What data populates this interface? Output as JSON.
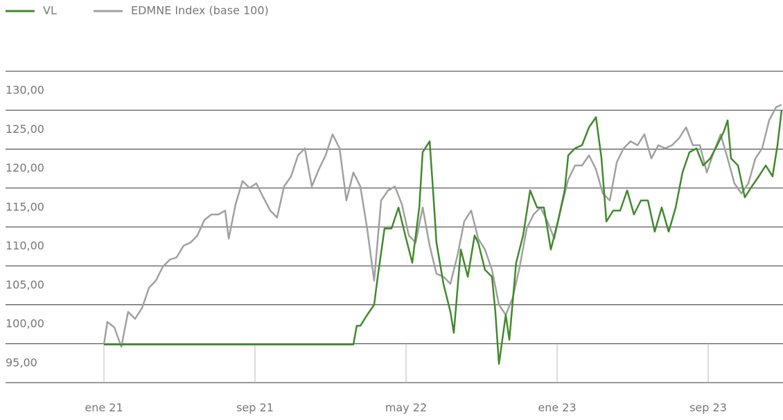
{
  "chart_data": {
    "type": "line",
    "series": [
      {
        "name": "VL",
        "color": "#3f8a2a",
        "x": [
          0,
          13.21,
          13.39,
          13.58,
          13.94,
          14.31,
          14.5,
          14.86,
          15.23,
          15.6,
          15.96,
          16.33,
          16.7,
          16.88,
          17.25,
          17.43,
          17.61,
          17.98,
          18.35,
          18.53,
          18.9,
          19.27,
          19.63,
          19.82,
          20.18,
          20.55,
          20.73,
          20.92,
          21.28,
          21.47,
          21.83,
          22.2,
          22.57,
          22.94,
          23.3,
          23.67,
          24.04,
          24.4,
          24.59,
          24.95,
          25.32,
          25.69,
          26.06,
          26.35,
          26.61,
          26.97,
          27.34,
          27.71,
          28.07,
          28.44,
          28.81,
          29.17,
          29.54,
          29.91,
          30.28,
          30.64,
          31.01,
          31.38,
          31.74,
          32.11,
          32.48,
          32.84,
          33.03,
          33.21,
          33.58,
          33.94,
          34.31,
          34.68,
          35.05,
          35.41,
          35.67,
          35.89
        ],
        "values": [
          97.4,
          97.4,
          99.8,
          99.8,
          101.2,
          102.5,
          106.1,
          112.3,
          112.3,
          115.0,
          111.4,
          107.9,
          115.0,
          122.1,
          123.5,
          117.2,
          110.5,
          105.2,
          101.6,
          98.9,
          109.6,
          106.1,
          111.4,
          110.5,
          107.0,
          106.1,
          101.6,
          94.9,
          101.2,
          98.0,
          107.9,
          111.4,
          117.2,
          115.0,
          115.0,
          109.6,
          113.2,
          117.2,
          121.7,
          122.6,
          123.0,
          125.3,
          126.6,
          121.3,
          113.2,
          114.6,
          114.6,
          117.2,
          114.1,
          115.9,
          115.9,
          111.9,
          115.0,
          111.9,
          115.0,
          119.5,
          122.1,
          122.6,
          120.4,
          121.3,
          123.0,
          124.8,
          126.2,
          121.3,
          120.4,
          116.3,
          117.7,
          119.0,
          120.4,
          119.0,
          123.0,
          127.5
        ]
      },
      {
        "name": "EDMNE Index (base 100)",
        "color": "#a0a0a0",
        "x": [
          0,
          0.18,
          0.55,
          0.92,
          1.28,
          1.65,
          2.02,
          2.39,
          2.75,
          3.12,
          3.49,
          3.85,
          4.22,
          4.59,
          4.95,
          5.32,
          5.69,
          6.06,
          6.42,
          6.61,
          6.97,
          7.34,
          7.71,
          8.07,
          8.44,
          8.81,
          9.17,
          9.54,
          9.91,
          10.28,
          10.64,
          11.01,
          11.38,
          11.74,
          12.11,
          12.48,
          12.84,
          13.21,
          13.58,
          13.94,
          14.31,
          14.68,
          15.05,
          15.41,
          15.78,
          16.15,
          16.51,
          16.88,
          17.25,
          17.61,
          17.98,
          18.35,
          18.72,
          19.08,
          19.45,
          19.82,
          20.18,
          20.55,
          20.92,
          21.28,
          21.65,
          22.02,
          22.39,
          22.75,
          23.12,
          23.49,
          23.85,
          24.22,
          24.59,
          24.95,
          25.32,
          25.69,
          26.06,
          26.42,
          26.79,
          27.16,
          27.52,
          27.89,
          28.26,
          28.62,
          28.99,
          29.36,
          29.72,
          30.09,
          30.46,
          30.83,
          31.19,
          31.56,
          31.93,
          32.29,
          32.66,
          33.03,
          33.39,
          33.76,
          34.13,
          34.5,
          34.86,
          35.23,
          35.6,
          35.89
        ],
        "values": [
          97.4,
          100.3,
          99.6,
          97.1,
          101.6,
          100.7,
          102.1,
          104.7,
          105.6,
          107.4,
          108.3,
          108.6,
          110.1,
          110.5,
          111.4,
          113.4,
          114.1,
          114.1,
          114.6,
          111.0,
          115.4,
          118.4,
          117.5,
          118.1,
          116.3,
          114.6,
          113.7,
          117.7,
          119.0,
          121.7,
          122.6,
          117.7,
          119.9,
          121.7,
          124.4,
          122.6,
          115.9,
          119.5,
          117.7,
          112.3,
          105.6,
          115.9,
          117.2,
          117.7,
          115.4,
          111.4,
          110.5,
          115.0,
          110.1,
          106.5,
          106.1,
          105.2,
          108.8,
          113.2,
          114.6,
          111.0,
          109.6,
          107.0,
          102.5,
          101.2,
          103.4,
          107.4,
          112.3,
          114.1,
          115.0,
          113.2,
          111.0,
          115.0,
          118.6,
          120.4,
          120.4,
          121.7,
          119.9,
          116.8,
          115.9,
          120.8,
          122.6,
          123.5,
          123.0,
          124.4,
          121.3,
          123.0,
          122.6,
          123.0,
          123.9,
          125.3,
          123.0,
          123.0,
          119.5,
          122.1,
          124.4,
          121.3,
          118.1,
          116.8,
          118.1,
          121.3,
          122.6,
          126.2,
          127.9,
          128.2
        ]
      }
    ],
    "xlim": [
      0,
      35.89
    ],
    "xticks": [
      {
        "value": 0,
        "label": "ene 21"
      },
      {
        "value": 8,
        "label": "sep 21"
      },
      {
        "value": 16,
        "label": "may 22"
      },
      {
        "value": 24,
        "label": "ene 23"
      },
      {
        "value": 32,
        "label": "sep 23"
      }
    ],
    "ylim": [
      92.5,
      132.5
    ],
    "yticks": [
      {
        "value": 130,
        "label": "130,00"
      },
      {
        "value": 125,
        "label": "125,00"
      },
      {
        "value": 120,
        "label": "120,00"
      },
      {
        "value": 115,
        "label": "115,00"
      },
      {
        "value": 110,
        "label": "110,00"
      },
      {
        "value": 105,
        "label": "105,00"
      },
      {
        "value": 100,
        "label": "100,00"
      },
      {
        "value": 95,
        "label": "95,00"
      }
    ],
    "grid": true,
    "legend": "top-left"
  }
}
